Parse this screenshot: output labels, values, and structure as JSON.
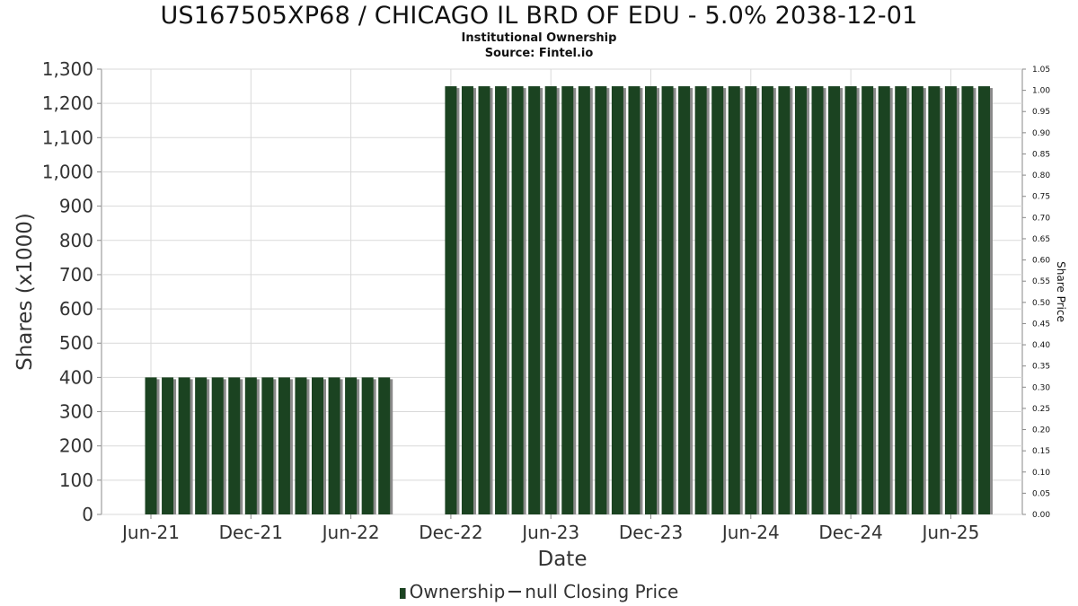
{
  "title": "US167505XP68 / CHICAGO IL BRD OF EDU - 5.0% 2038-12-01",
  "subtitle": "Institutional Ownership",
  "source": "Source: Fintel.io",
  "legend": {
    "series1": "Ownership",
    "series2": "null Closing Price"
  },
  "colors": {
    "bar": "#1b4321",
    "bar_shadow": "#8a8a8a",
    "grid": "#d9d9d9",
    "axis": "#888888"
  },
  "chart_data": {
    "type": "bar",
    "xlabel": "Date",
    "ylabel": "Shares (x1000)",
    "y2label": "Share Price",
    "ylim": [
      0,
      1300
    ],
    "y2lim": [
      0,
      1.05
    ],
    "yticks": [
      "0",
      "100",
      "200",
      "300",
      "400",
      "500",
      "600",
      "700",
      "800",
      "900",
      "1,000",
      "1,100",
      "1,200",
      "1,300"
    ],
    "y2ticks": [
      "0.00",
      "0.05",
      "0.10",
      "0.15",
      "0.20",
      "0.25",
      "0.30",
      "0.35",
      "0.40",
      "0.45",
      "0.50",
      "0.55",
      "0.60",
      "0.65",
      "0.70",
      "0.75",
      "0.80",
      "0.85",
      "0.90",
      "0.95",
      "1.00",
      "1.05"
    ],
    "xticks": [
      "Jun-21",
      "Dec-21",
      "Jun-22",
      "Dec-22",
      "Jun-23",
      "Dec-23",
      "Jun-24",
      "Dec-24",
      "Jun-25"
    ],
    "grid": true,
    "legend_position": "bottom",
    "series": [
      {
        "name": "Ownership",
        "groups": [
          {
            "start_month": "Jun-21",
            "count": 15,
            "value": 400
          },
          {
            "start_month": "Dec-22",
            "count": 33,
            "value": 1250
          }
        ]
      },
      {
        "name": "null Closing Price",
        "values": []
      }
    ]
  }
}
